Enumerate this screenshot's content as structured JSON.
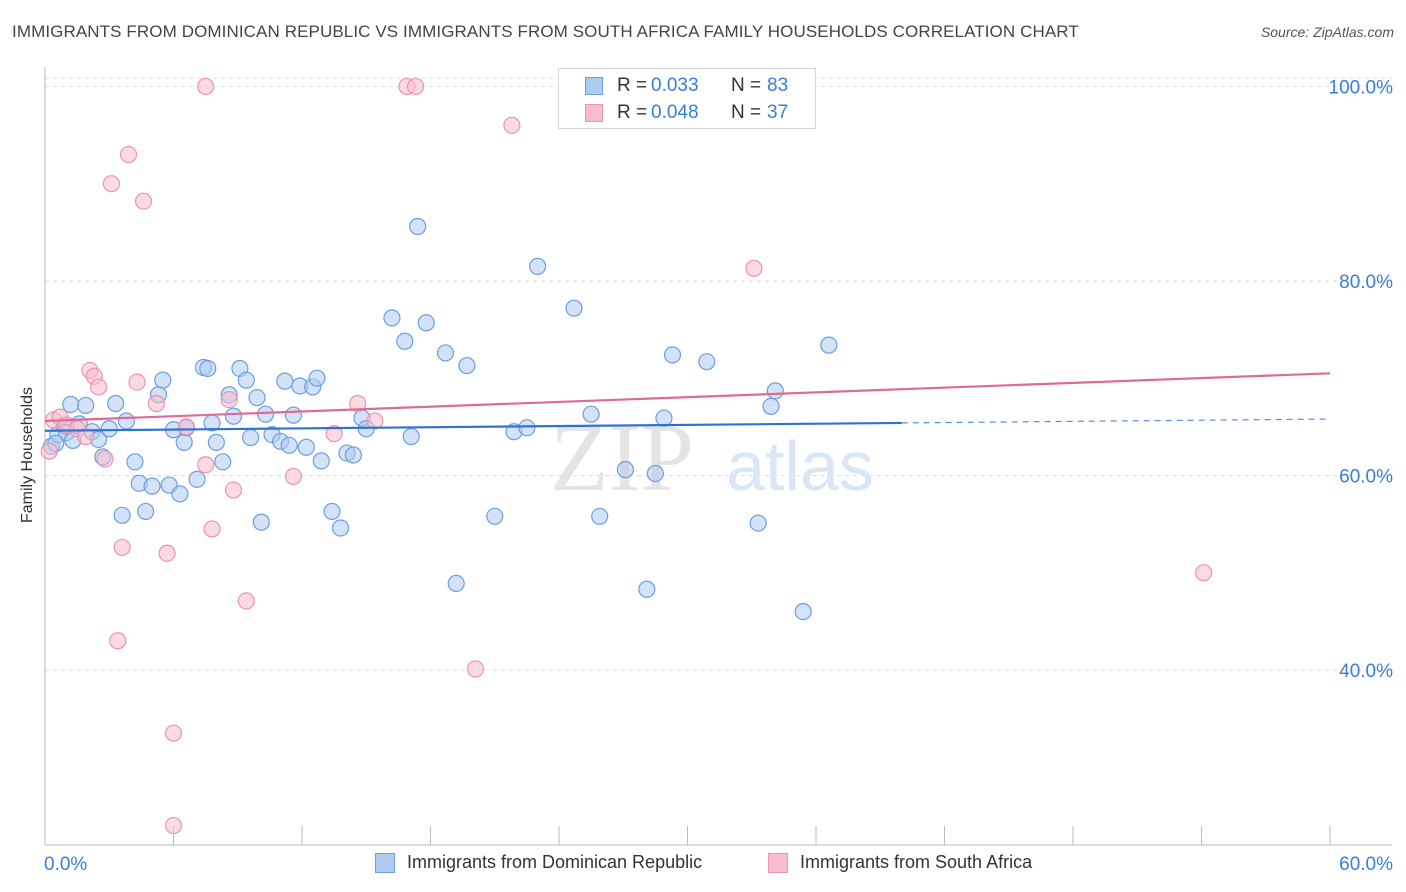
{
  "header": {
    "title": "IMMIGRANTS FROM DOMINICAN REPUBLIC VS IMMIGRANTS FROM SOUTH AFRICA FAMILY HOUSEHOLDS CORRELATION CHART",
    "source": "Source: ZipAtlas.com"
  },
  "watermark": {
    "zip": "ZIP",
    "atlas": "atlas"
  },
  "stats_legend": {
    "blue": {
      "r_label": "R =",
      "r_value": "0.033",
      "n_label": "N =",
      "n_value": "83"
    },
    "pink": {
      "r_label": "R =",
      "r_value": "0.048",
      "n_label": "N =",
      "n_value": "37"
    }
  },
  "bottom_legend": {
    "blue_label": "Immigrants from Dominican Republic",
    "pink_label": "Immigrants from South Africa"
  },
  "colors": {
    "blue_fill": "#aecbf0",
    "blue_stroke": "#6a9fe0",
    "blue_line": "#2f72d4",
    "pink_fill": "#f7bccd",
    "pink_stroke": "#ec94b0",
    "pink_line": "#e06a96",
    "axis_text": "#3a7dd8",
    "grid": "#dddddd"
  },
  "chart_data": {
    "type": "scatter",
    "title": "IMMIGRANTS FROM DOMINICAN REPUBLIC VS IMMIGRANTS FROM SOUTH AFRICA FAMILY HOUSEHOLDS CORRELATION CHART",
    "xlabel": "",
    "ylabel": "Family Households",
    "xlim": [
      0,
      60
    ],
    "ylim": [
      22,
      102
    ],
    "x_tick_labels": [
      "0.0%",
      "60.0%"
    ],
    "y_ticks": [
      40,
      60,
      80,
      100
    ],
    "y_tick_labels": [
      "40.0%",
      "60.0%",
      "80.0%",
      "100.0%"
    ],
    "grid": true,
    "legend_placement": "top-center",
    "series": [
      {
        "name": "Immigrants from Dominican Republic",
        "points": [
          [
            0.3,
            63.0
          ],
          [
            0.6,
            64.2
          ],
          [
            0.9,
            65.1
          ],
          [
            1.0,
            64.4
          ],
          [
            1.2,
            67.3
          ],
          [
            1.3,
            63.6
          ],
          [
            1.6,
            65.3
          ],
          [
            1.9,
            67.2
          ],
          [
            2.2,
            64.5
          ],
          [
            2.5,
            63.7
          ],
          [
            2.7,
            61.9
          ],
          [
            3.0,
            64.8
          ],
          [
            3.3,
            67.4
          ],
          [
            3.6,
            55.9
          ],
          [
            3.8,
            65.6
          ],
          [
            4.2,
            61.4
          ],
          [
            4.4,
            59.2
          ],
          [
            4.7,
            56.3
          ],
          [
            5.0,
            58.9
          ],
          [
            5.3,
            68.3
          ],
          [
            5.5,
            69.8
          ],
          [
            5.8,
            59.0
          ],
          [
            6.0,
            64.7
          ],
          [
            6.3,
            58.1
          ],
          [
            6.5,
            63.4
          ],
          [
            6.6,
            64.9
          ],
          [
            7.1,
            59.6
          ],
          [
            7.4,
            71.1
          ],
          [
            7.6,
            71.0
          ],
          [
            7.8,
            65.4
          ],
          [
            8.0,
            63.4
          ],
          [
            8.3,
            61.4
          ],
          [
            8.6,
            68.3
          ],
          [
            8.8,
            66.1
          ],
          [
            9.1,
            71.0
          ],
          [
            9.4,
            69.8
          ],
          [
            9.6,
            63.9
          ],
          [
            9.9,
            68.0
          ],
          [
            10.1,
            55.2
          ],
          [
            10.3,
            66.3
          ],
          [
            10.6,
            64.2
          ],
          [
            11.0,
            63.5
          ],
          [
            11.2,
            69.7
          ],
          [
            11.4,
            63.1
          ],
          [
            11.6,
            66.2
          ],
          [
            11.9,
            69.2
          ],
          [
            12.2,
            62.9
          ],
          [
            12.5,
            69.1
          ],
          [
            12.7,
            70.0
          ],
          [
            12.9,
            61.5
          ],
          [
            13.4,
            56.3
          ],
          [
            13.8,
            54.6
          ],
          [
            14.1,
            62.3
          ],
          [
            14.4,
            62.1
          ],
          [
            14.8,
            65.9
          ],
          [
            15.0,
            64.8
          ],
          [
            16.2,
            76.2
          ],
          [
            16.8,
            73.8
          ],
          [
            17.1,
            64.0
          ],
          [
            17.4,
            85.6
          ],
          [
            17.8,
            75.7
          ],
          [
            18.7,
            72.6
          ],
          [
            19.2,
            48.9
          ],
          [
            19.7,
            71.3
          ],
          [
            21.0,
            55.8
          ],
          [
            21.9,
            64.5
          ],
          [
            22.5,
            64.9
          ],
          [
            23.0,
            81.5
          ],
          [
            24.7,
            77.2
          ],
          [
            25.5,
            66.3
          ],
          [
            25.9,
            55.8
          ],
          [
            27.1,
            60.6
          ],
          [
            28.1,
            48.3
          ],
          [
            28.5,
            60.2
          ],
          [
            28.9,
            65.9
          ],
          [
            29.3,
            72.4
          ],
          [
            30.9,
            71.7
          ],
          [
            33.3,
            55.1
          ],
          [
            33.9,
            67.1
          ],
          [
            34.1,
            68.7
          ],
          [
            35.4,
            46.0
          ],
          [
            36.6,
            73.4
          ],
          [
            0.5,
            63.3
          ]
        ]
      },
      {
        "name": "Immigrants from South Africa",
        "points": [
          [
            0.2,
            62.5
          ],
          [
            0.4,
            65.7
          ],
          [
            0.7,
            66.0
          ],
          [
            1.0,
            65.2
          ],
          [
            1.5,
            64.8
          ],
          [
            1.9,
            64.0
          ],
          [
            2.1,
            70.8
          ],
          [
            2.3,
            70.2
          ],
          [
            2.5,
            69.1
          ],
          [
            2.8,
            61.7
          ],
          [
            3.1,
            90.0
          ],
          [
            3.4,
            43.0
          ],
          [
            3.6,
            52.6
          ],
          [
            3.9,
            93.0
          ],
          [
            4.3,
            69.6
          ],
          [
            4.6,
            88.2
          ],
          [
            5.2,
            67.4
          ],
          [
            5.7,
            52.0
          ],
          [
            6.0,
            33.5
          ],
          [
            6.0,
            24.0
          ],
          [
            6.6,
            65.0
          ],
          [
            7.5,
            100.0
          ],
          [
            7.5,
            61.1
          ],
          [
            7.8,
            54.5
          ],
          [
            8.6,
            67.8
          ],
          [
            8.8,
            58.5
          ],
          [
            9.4,
            47.1
          ],
          [
            11.6,
            59.9
          ],
          [
            13.5,
            64.3
          ],
          [
            14.6,
            67.4
          ],
          [
            16.9,
            100.0
          ],
          [
            17.3,
            100.0
          ],
          [
            20.1,
            40.1
          ],
          [
            21.8,
            96.0
          ],
          [
            33.1,
            81.3
          ],
          [
            54.1,
            50.0
          ],
          [
            15.4,
            65.6
          ]
        ]
      }
    ],
    "trend_lines": [
      {
        "series": "Immigrants from Dominican Republic",
        "x": [
          0,
          40
        ],
        "y": [
          64.6,
          65.4
        ],
        "dashed_to": [
          60,
          65.8
        ]
      },
      {
        "series": "Immigrants from South Africa",
        "x": [
          0,
          60
        ],
        "y": [
          65.6,
          70.5
        ]
      }
    ]
  }
}
